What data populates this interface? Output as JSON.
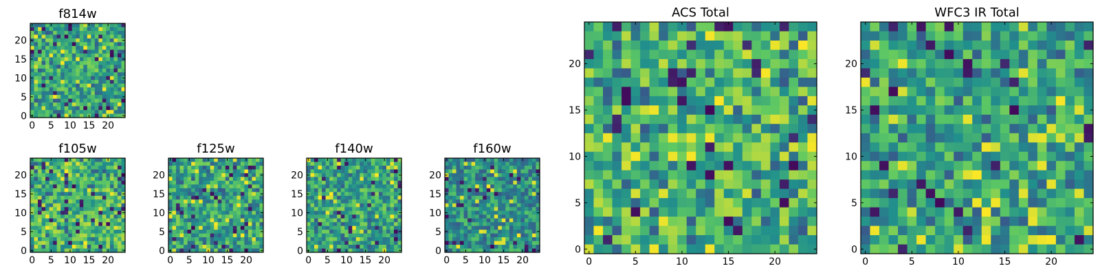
{
  "figure": {
    "background": "#ffffff",
    "colormap": "viridis",
    "colormap_stops": [
      "#440154",
      "#3b528b",
      "#21908c",
      "#5dc863",
      "#fde725"
    ]
  },
  "chart_data": [
    {
      "type": "heatmap",
      "title": "f814w",
      "size": 25,
      "xticks": [
        0,
        5,
        10,
        15,
        20
      ],
      "yticks": [
        0,
        5,
        10,
        15,
        20
      ],
      "xlim": [
        -0.5,
        24.5
      ],
      "ylim": [
        -0.5,
        24.5
      ],
      "style": "mixed",
      "seed": 11
    },
    {
      "type": "heatmap",
      "title": "f105w",
      "size": 25,
      "xticks": [
        0,
        5,
        10,
        15,
        20
      ],
      "yticks": [
        0,
        5,
        10,
        15,
        20
      ],
      "xlim": [
        -0.5,
        24.5
      ],
      "ylim": [
        -0.5,
        24.5
      ],
      "style": "bright",
      "seed": 23
    },
    {
      "type": "heatmap",
      "title": "f125w",
      "size": 25,
      "xticks": [
        0,
        5,
        10,
        15,
        20
      ],
      "yticks": [
        0,
        5,
        10,
        15,
        20
      ],
      "xlim": [
        -0.5,
        24.5
      ],
      "ylim": [
        -0.5,
        24.5
      ],
      "style": "mixed",
      "seed": 37
    },
    {
      "type": "heatmap",
      "title": "f140w",
      "size": 25,
      "xticks": [
        0,
        5,
        10,
        15,
        20
      ],
      "yticks": [
        0,
        5,
        10,
        15,
        20
      ],
      "xlim": [
        -0.5,
        24.5
      ],
      "ylim": [
        -0.5,
        24.5
      ],
      "style": "mixed",
      "seed": 41
    },
    {
      "type": "heatmap",
      "title": "f160w",
      "size": 25,
      "xticks": [
        0,
        5,
        10,
        15,
        20
      ],
      "yticks": [
        0,
        5,
        10,
        15,
        20
      ],
      "xlim": [
        -0.5,
        24.5
      ],
      "ylim": [
        -0.5,
        24.5
      ],
      "style": "dark",
      "seed": 53
    },
    {
      "type": "heatmap",
      "title": "ACS Total",
      "size": 25,
      "xticks": [
        0,
        5,
        10,
        15,
        20
      ],
      "yticks": [
        0,
        5,
        10,
        15,
        20
      ],
      "xlim": [
        -0.5,
        24.5
      ],
      "ylim": [
        -0.5,
        24.5
      ],
      "style": "bright",
      "seed": 67
    },
    {
      "type": "heatmap",
      "title": "WFC3 IR Total",
      "size": 25,
      "xticks": [
        0,
        5,
        10,
        15,
        20
      ],
      "yticks": [
        0,
        5,
        10,
        15,
        20
      ],
      "xlim": [
        -0.5,
        24.5
      ],
      "ylim": [
        -0.5,
        24.5
      ],
      "style": "mixed",
      "seed": 79
    }
  ]
}
